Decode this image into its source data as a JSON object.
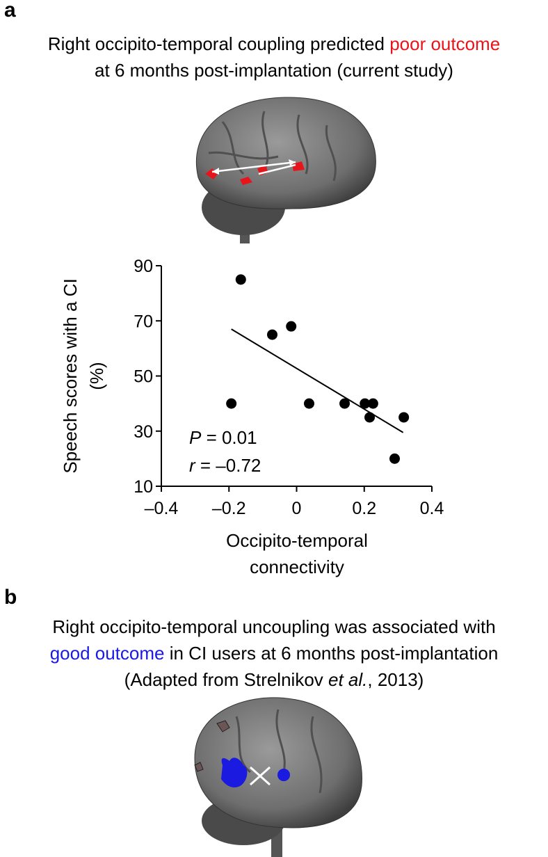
{
  "panel_a": {
    "label": "a",
    "title": [
      [
        {
          "text": "Right occipito-temporal coupling predicted "
        },
        {
          "text": "poor outcome",
          "color": "#e8141b"
        }
      ],
      [
        {
          "text": "at 6 months post-implantation (current study)"
        }
      ]
    ]
  },
  "chart_data": {
    "type": "scatter",
    "x": [
      -0.165,
      -0.193,
      -0.072,
      -0.016,
      0.037,
      0.142,
      0.202,
      0.226,
      0.216,
      0.317,
      0.29
    ],
    "values": [
      85,
      40,
      65,
      68,
      40,
      40,
      40,
      40,
      35,
      35,
      20
    ],
    "color": "#000000",
    "fit_line": {
      "x": [
        -0.193,
        0.315
      ],
      "y": [
        67,
        29.5
      ]
    },
    "xlim": [
      -0.4,
      0.4
    ],
    "xticks": [
      {
        "value": -0.4,
        "label": "–0.4"
      },
      {
        "value": -0.2,
        "label": "–0.2"
      },
      0,
      0.2,
      0.4
    ],
    "ylim": [
      10,
      90
    ],
    "yticks": [
      10,
      30,
      50,
      70,
      90
    ],
    "y_label": [
      "Speech scores with a CI",
      "(%)"
    ],
    "x_label": [
      "Occipito-temporal",
      "connectivity"
    ],
    "annotations": [
      [
        {
          "text": "P",
          "italic": true
        },
        {
          "text": " = 0.01"
        }
      ],
      [
        {
          "text": "r",
          "italic": true
        },
        {
          "text": " = –0.72"
        }
      ]
    ]
  },
  "panel_b": {
    "label": "b",
    "title": [
      [
        {
          "text": "Right occipito-temporal uncoupling was associated with"
        }
      ],
      [
        {
          "text": "good outcome",
          "color": "#1a1ae0"
        },
        {
          "text": " in CI users at 6 months post-implantation"
        }
      ],
      [
        {
          "text": "(Adapted from Strelnikov "
        },
        {
          "text": "et al.",
          "italic": true
        },
        {
          "text": ", 2013)"
        }
      ]
    ]
  }
}
